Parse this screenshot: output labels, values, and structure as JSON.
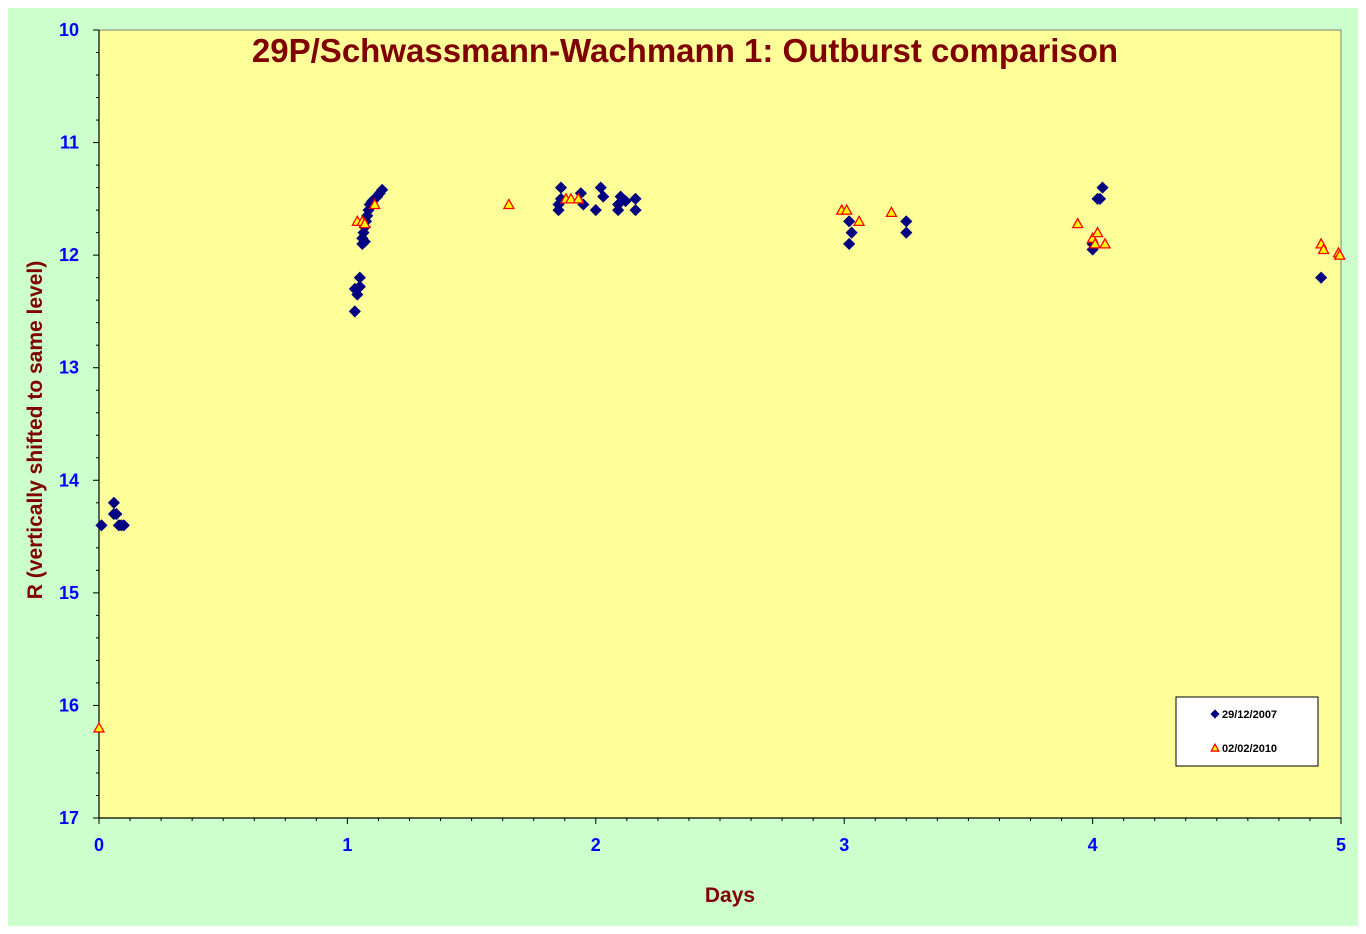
{
  "chart_data": {
    "type": "scatter",
    "title": "29P/Schwassmann-Wachmann 1: Outburst comparison",
    "xlabel": "Days",
    "ylabel": "R (vertically shifted to same level)",
    "xlim": [
      0,
      5
    ],
    "ylim": [
      10,
      17
    ],
    "y_inverted": true,
    "x_ticks": [
      0,
      1,
      2,
      3,
      4,
      5
    ],
    "y_ticks": [
      10,
      11,
      12,
      13,
      14,
      15,
      16,
      17
    ],
    "grid": false,
    "legend_position": "bottom-right",
    "colors": {
      "chart_area": "#ccffcc",
      "plot_area": "#ffff99",
      "title": "#800000",
      "axis_title": "#800000",
      "tick_labels": "#0000ff"
    },
    "series": [
      {
        "name": "29/12/2007",
        "marker": "diamond",
        "color": "#000080",
        "points": [
          [
            0.01,
            14.4
          ],
          [
            0.06,
            14.2
          ],
          [
            0.06,
            14.3
          ],
          [
            0.07,
            14.3
          ],
          [
            0.08,
            14.4
          ],
          [
            0.09,
            14.4
          ],
          [
            0.1,
            14.4
          ],
          [
            1.03,
            12.5
          ],
          [
            1.03,
            12.3
          ],
          [
            1.04,
            12.35
          ],
          [
            1.04,
            12.3
          ],
          [
            1.05,
            12.2
          ],
          [
            1.05,
            12.28
          ],
          [
            1.06,
            11.9
          ],
          [
            1.06,
            11.85
          ],
          [
            1.065,
            11.8
          ],
          [
            1.07,
            11.75
          ],
          [
            1.07,
            11.88
          ],
          [
            1.075,
            11.7
          ],
          [
            1.08,
            11.65
          ],
          [
            1.085,
            11.6
          ],
          [
            1.09,
            11.55
          ],
          [
            1.1,
            11.52
          ],
          [
            1.11,
            11.5
          ],
          [
            1.12,
            11.48
          ],
          [
            1.13,
            11.45
          ],
          [
            1.14,
            11.42
          ],
          [
            1.85,
            11.6
          ],
          [
            1.85,
            11.55
          ],
          [
            1.86,
            11.5
          ],
          [
            1.86,
            11.4
          ],
          [
            1.94,
            11.45
          ],
          [
            1.95,
            11.55
          ],
          [
            2.0,
            11.6
          ],
          [
            2.02,
            11.4
          ],
          [
            2.03,
            11.48
          ],
          [
            2.09,
            11.55
          ],
          [
            2.09,
            11.6
          ],
          [
            2.1,
            11.48
          ],
          [
            2.12,
            11.52
          ],
          [
            2.16,
            11.6
          ],
          [
            2.16,
            11.5
          ],
          [
            3.02,
            11.7
          ],
          [
            3.02,
            11.9
          ],
          [
            3.03,
            11.8
          ],
          [
            3.25,
            11.7
          ],
          [
            3.25,
            11.8
          ],
          [
            4.0,
            11.95
          ],
          [
            4.0,
            11.9
          ],
          [
            4.02,
            11.5
          ],
          [
            4.03,
            11.5
          ],
          [
            4.04,
            11.4
          ],
          [
            4.92,
            12.2
          ]
        ]
      },
      {
        "name": "02/02/2010",
        "marker": "triangle",
        "color": "#ffff00",
        "edge_color": "#ff0000",
        "points": [
          [
            0.0,
            16.2
          ],
          [
            1.04,
            11.7
          ],
          [
            1.06,
            11.7
          ],
          [
            1.07,
            11.72
          ],
          [
            1.11,
            11.55
          ],
          [
            1.65,
            11.55
          ],
          [
            1.88,
            11.5
          ],
          [
            1.9,
            11.5
          ],
          [
            1.93,
            11.5
          ],
          [
            2.99,
            11.6
          ],
          [
            3.01,
            11.6
          ],
          [
            3.06,
            11.7
          ],
          [
            3.19,
            11.62
          ],
          [
            3.94,
            11.72
          ],
          [
            4.0,
            11.85
          ],
          [
            4.01,
            11.9
          ],
          [
            4.02,
            11.8
          ],
          [
            4.05,
            11.9
          ],
          [
            4.92,
            11.9
          ],
          [
            4.93,
            11.95
          ],
          [
            4.99,
            11.98
          ],
          [
            4.995,
            12.0
          ]
        ]
      }
    ]
  }
}
